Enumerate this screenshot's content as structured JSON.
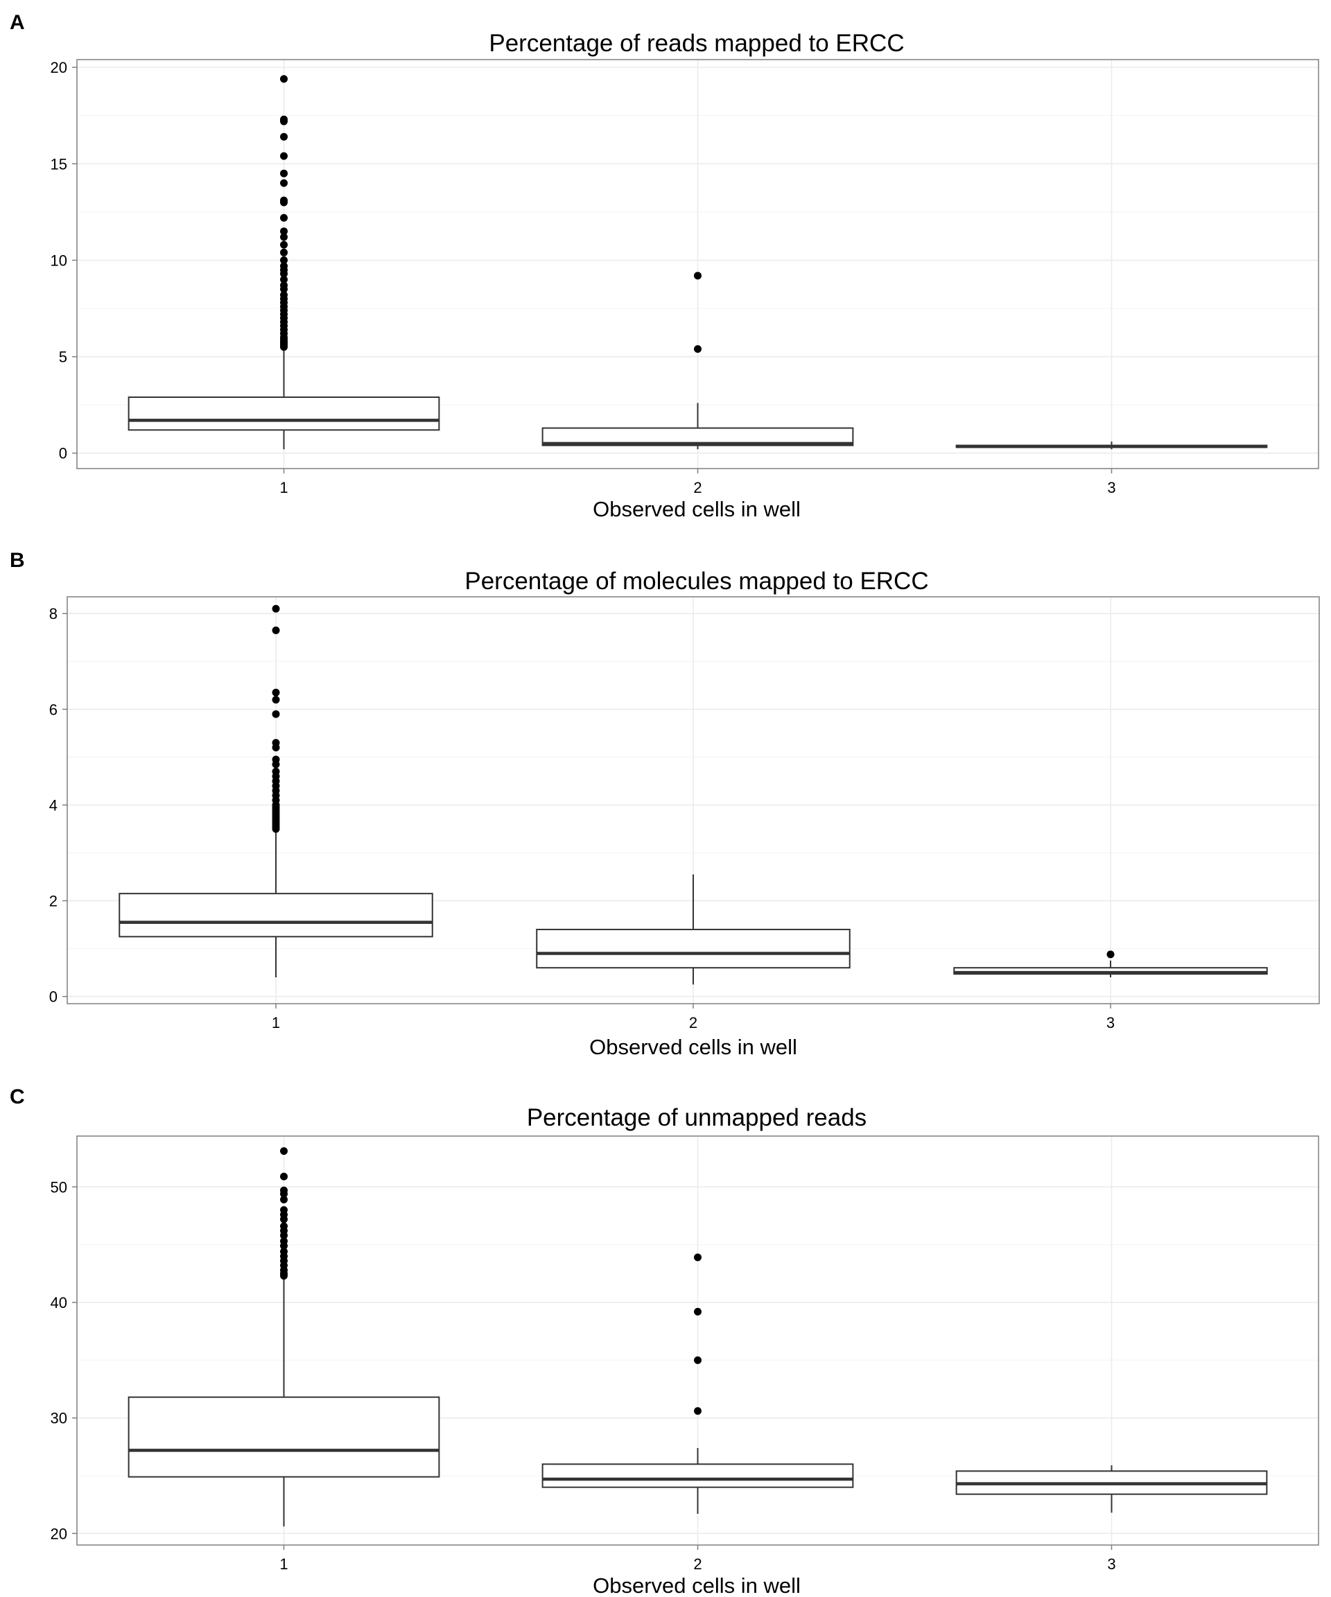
{
  "chart_data": [
    {
      "panel": "A",
      "type": "box",
      "title": "Percentage of reads mapped to ERCC",
      "xlabel": "Observed cells in well",
      "ylabel": "",
      "categories": [
        "1",
        "2",
        "3"
      ],
      "ylim": [
        -0.8,
        20.4
      ],
      "yticks": [
        0,
        5,
        10,
        15,
        20
      ],
      "grid": true,
      "boxes": [
        {
          "category": "1",
          "whisker_low": 0.2,
          "q1": 1.2,
          "median": 1.7,
          "q3": 2.9,
          "whisker_high": 5.5,
          "outliers": [
            19.4,
            17.3,
            17.2,
            16.4,
            15.4,
            14.5,
            14.0,
            13.1,
            13.0,
            12.2,
            11.5,
            11.2,
            10.8,
            10.4,
            10.0,
            9.7,
            9.5,
            9.3,
            9.0,
            8.7,
            8.5,
            8.2,
            8.0,
            7.8,
            7.6,
            7.4,
            7.2,
            7.0,
            6.8,
            6.6,
            6.4,
            6.2,
            6.0,
            5.9,
            5.8,
            5.7,
            5.6,
            5.5
          ]
        },
        {
          "category": "2",
          "whisker_low": 0.2,
          "q1": 0.4,
          "median": 0.5,
          "q3": 1.3,
          "whisker_high": 2.6,
          "outliers": [
            9.2,
            5.4
          ]
        },
        {
          "category": "3",
          "whisker_low": 0.2,
          "q1": 0.3,
          "median": 0.35,
          "q3": 0.4,
          "whisker_high": 0.6,
          "outliers": []
        }
      ]
    },
    {
      "panel": "B",
      "type": "box",
      "title": "Percentage of molecules mapped to ERCC",
      "xlabel": "Observed cells in well",
      "ylabel": "",
      "categories": [
        "1",
        "2",
        "3"
      ],
      "ylim": [
        -0.15,
        8.35
      ],
      "yticks": [
        0,
        2,
        4,
        6,
        8
      ],
      "grid": true,
      "boxes": [
        {
          "category": "1",
          "whisker_low": 0.4,
          "q1": 1.25,
          "median": 1.55,
          "q3": 2.15,
          "whisker_high": 3.5,
          "outliers": [
            8.1,
            7.65,
            6.35,
            6.2,
            5.9,
            5.3,
            5.2,
            4.95,
            4.85,
            4.7,
            4.6,
            4.5,
            4.4,
            4.3,
            4.2,
            4.1,
            4.0,
            3.95,
            3.9,
            3.85,
            3.8,
            3.75,
            3.7,
            3.65,
            3.6,
            3.55,
            3.5
          ]
        },
        {
          "category": "2",
          "whisker_low": 0.25,
          "q1": 0.6,
          "median": 0.9,
          "q3": 1.4,
          "whisker_high": 2.55,
          "outliers": []
        },
        {
          "category": "3",
          "whisker_low": 0.4,
          "q1": 0.47,
          "median": 0.5,
          "q3": 0.6,
          "whisker_high": 0.75,
          "outliers": [
            0.88
          ]
        }
      ]
    },
    {
      "panel": "C",
      "type": "box",
      "title": "Percentage of unmapped reads",
      "xlabel": "Observed cells in well",
      "ylabel": "",
      "categories": [
        "1",
        "2",
        "3"
      ],
      "ylim": [
        19.0,
        54.4
      ],
      "yticks": [
        20,
        30,
        40,
        50
      ],
      "grid": true,
      "boxes": [
        {
          "category": "1",
          "whisker_low": 20.6,
          "q1": 24.9,
          "median": 27.2,
          "q3": 31.8,
          "whisker_high": 42.3,
          "outliers": [
            53.1,
            50.9,
            49.7,
            49.4,
            48.9,
            48.0,
            47.6,
            47.2,
            46.6,
            46.2,
            45.8,
            45.3,
            44.9,
            44.4,
            44.0,
            43.6,
            43.2,
            42.8,
            42.5,
            42.3
          ]
        },
        {
          "category": "2",
          "whisker_low": 21.7,
          "q1": 24.0,
          "median": 24.7,
          "q3": 26.0,
          "whisker_high": 27.4,
          "outliers": [
            43.9,
            39.2,
            35.0,
            30.6
          ]
        },
        {
          "category": "3",
          "whisker_low": 21.8,
          "q1": 23.4,
          "median": 24.3,
          "q3": 25.4,
          "whisker_high": 25.9,
          "outliers": []
        }
      ]
    }
  ],
  "colors": {
    "panel_border": "#7f7f7f",
    "grid_major": "#ebebeb",
    "grid_minor": "#f5f5f5",
    "box_stroke": "#333333",
    "point": "#000000"
  }
}
